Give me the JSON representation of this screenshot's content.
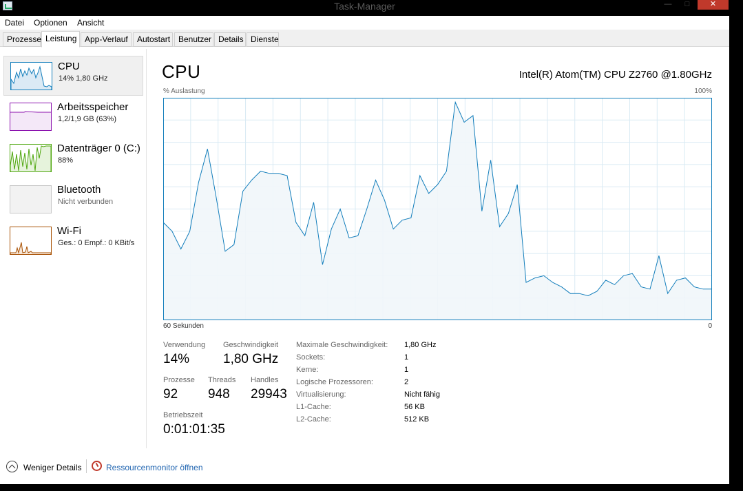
{
  "window": {
    "title": "Task-Manager",
    "minimize_glyph": "—",
    "maximize_glyph": "□",
    "close_glyph": "✕"
  },
  "menu": [
    "Datei",
    "Optionen",
    "Ansicht"
  ],
  "tabs": [
    "Prozesse",
    "Leistung",
    "App-Verlauf",
    "Autostart",
    "Benutzer",
    "Details",
    "Dienste"
  ],
  "active_tab": "Leistung",
  "sidebar": {
    "items": [
      {
        "title": "CPU",
        "sub": "14% 1,80 GHz",
        "color": "#117dbb",
        "selected": true
      },
      {
        "title": "Arbeitsspeicher",
        "sub": "1,2/1,9 GB (63%)",
        "color": "#8b12ae",
        "selected": false
      },
      {
        "title": "Datenträger 0 (C:)",
        "sub": "88%",
        "color": "#4da60c",
        "selected": false
      },
      {
        "title": "Bluetooth",
        "sub": "Nicht verbunden",
        "color": "#c8c8c8",
        "selected": false
      },
      {
        "title": "Wi-Fi",
        "sub": "Ges.: 0 Empf.: 0 KBit/s",
        "color": "#a74f01",
        "selected": false
      }
    ]
  },
  "cpu_panel": {
    "heading": "CPU",
    "model": "Intel(R) Atom(TM) CPU Z2760 @1.80GHz",
    "axis_left": "% Auslastung",
    "axis_right": "100%",
    "time_left": "60 Sekunden",
    "time_right": "0",
    "line_color": "#117dbb",
    "fill_color": "#f1f6fa",
    "grid_color": "#d9eaf4"
  },
  "stats": {
    "usage_label": "Verwendung",
    "usage_value": "14%",
    "speed_label": "Geschwindigkeit",
    "speed_value": "1,80 GHz",
    "processes_label": "Prozesse",
    "processes_value": "92",
    "threads_label": "Threads",
    "threads_value": "948",
    "handles_label": "Handles",
    "handles_value": "29943",
    "uptime_label": "Betriebszeit",
    "uptime_value": "0:01:01:35"
  },
  "specs": [
    {
      "label": "Maximale Geschwindigkeit:",
      "value": "1,80 GHz"
    },
    {
      "label": "Sockets:",
      "value": "1"
    },
    {
      "label": "Kerne:",
      "value": "1"
    },
    {
      "label": "Logische Prozessoren:",
      "value": "2"
    },
    {
      "label": "Virtualisierung:",
      "value": "Nicht fähig"
    },
    {
      "label": "L1-Cache:",
      "value": "56 KB"
    },
    {
      "label": "L2-Cache:",
      "value": "512 KB"
    }
  ],
  "footer": {
    "fewer_details": "Weniger Details",
    "resource_monitor": "Ressourcenmonitor öffnen"
  },
  "chart_data": {
    "type": "area",
    "x_range_seconds": [
      60,
      0
    ],
    "ylim": [
      0,
      100
    ],
    "grid": true,
    "values": [
      44,
      40,
      32,
      40,
      62,
      77,
      55,
      31,
      34,
      58,
      63,
      67,
      66,
      66,
      65,
      44,
      38,
      53,
      25,
      41,
      50,
      37,
      38,
      50,
      63,
      54,
      41,
      45,
      46,
      65,
      57,
      61,
      67,
      98,
      89,
      92,
      49,
      72,
      42,
      48,
      61,
      17,
      19,
      20,
      17,
      15,
      12,
      12,
      11,
      13,
      18,
      16,
      20,
      21,
      15,
      14,
      29,
      12,
      18,
      19,
      15,
      14,
      14
    ]
  }
}
